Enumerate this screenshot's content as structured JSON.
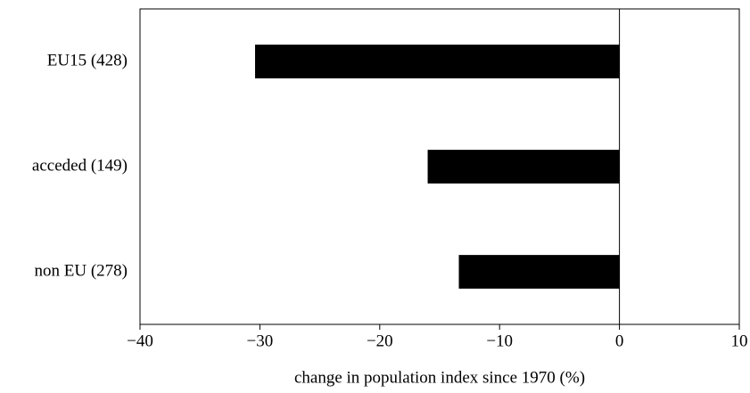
{
  "chart_data": {
    "type": "barh",
    "x_label": "change in population index since 1970 (%)",
    "categories": [
      "EU15 (428)",
      "acceded (149)",
      "non EU (278)"
    ],
    "values": [
      -30.4,
      -16.0,
      -13.4
    ],
    "color": "#000000",
    "xlim": [
      -40,
      10
    ],
    "xticks": [
      {
        "value": -40,
        "label": "−40"
      },
      {
        "value": -30,
        "label": "−30"
      },
      {
        "value": -20,
        "label": "−20"
      },
      {
        "value": -10,
        "label": "−10"
      },
      0,
      10
    ],
    "grid": false
  }
}
